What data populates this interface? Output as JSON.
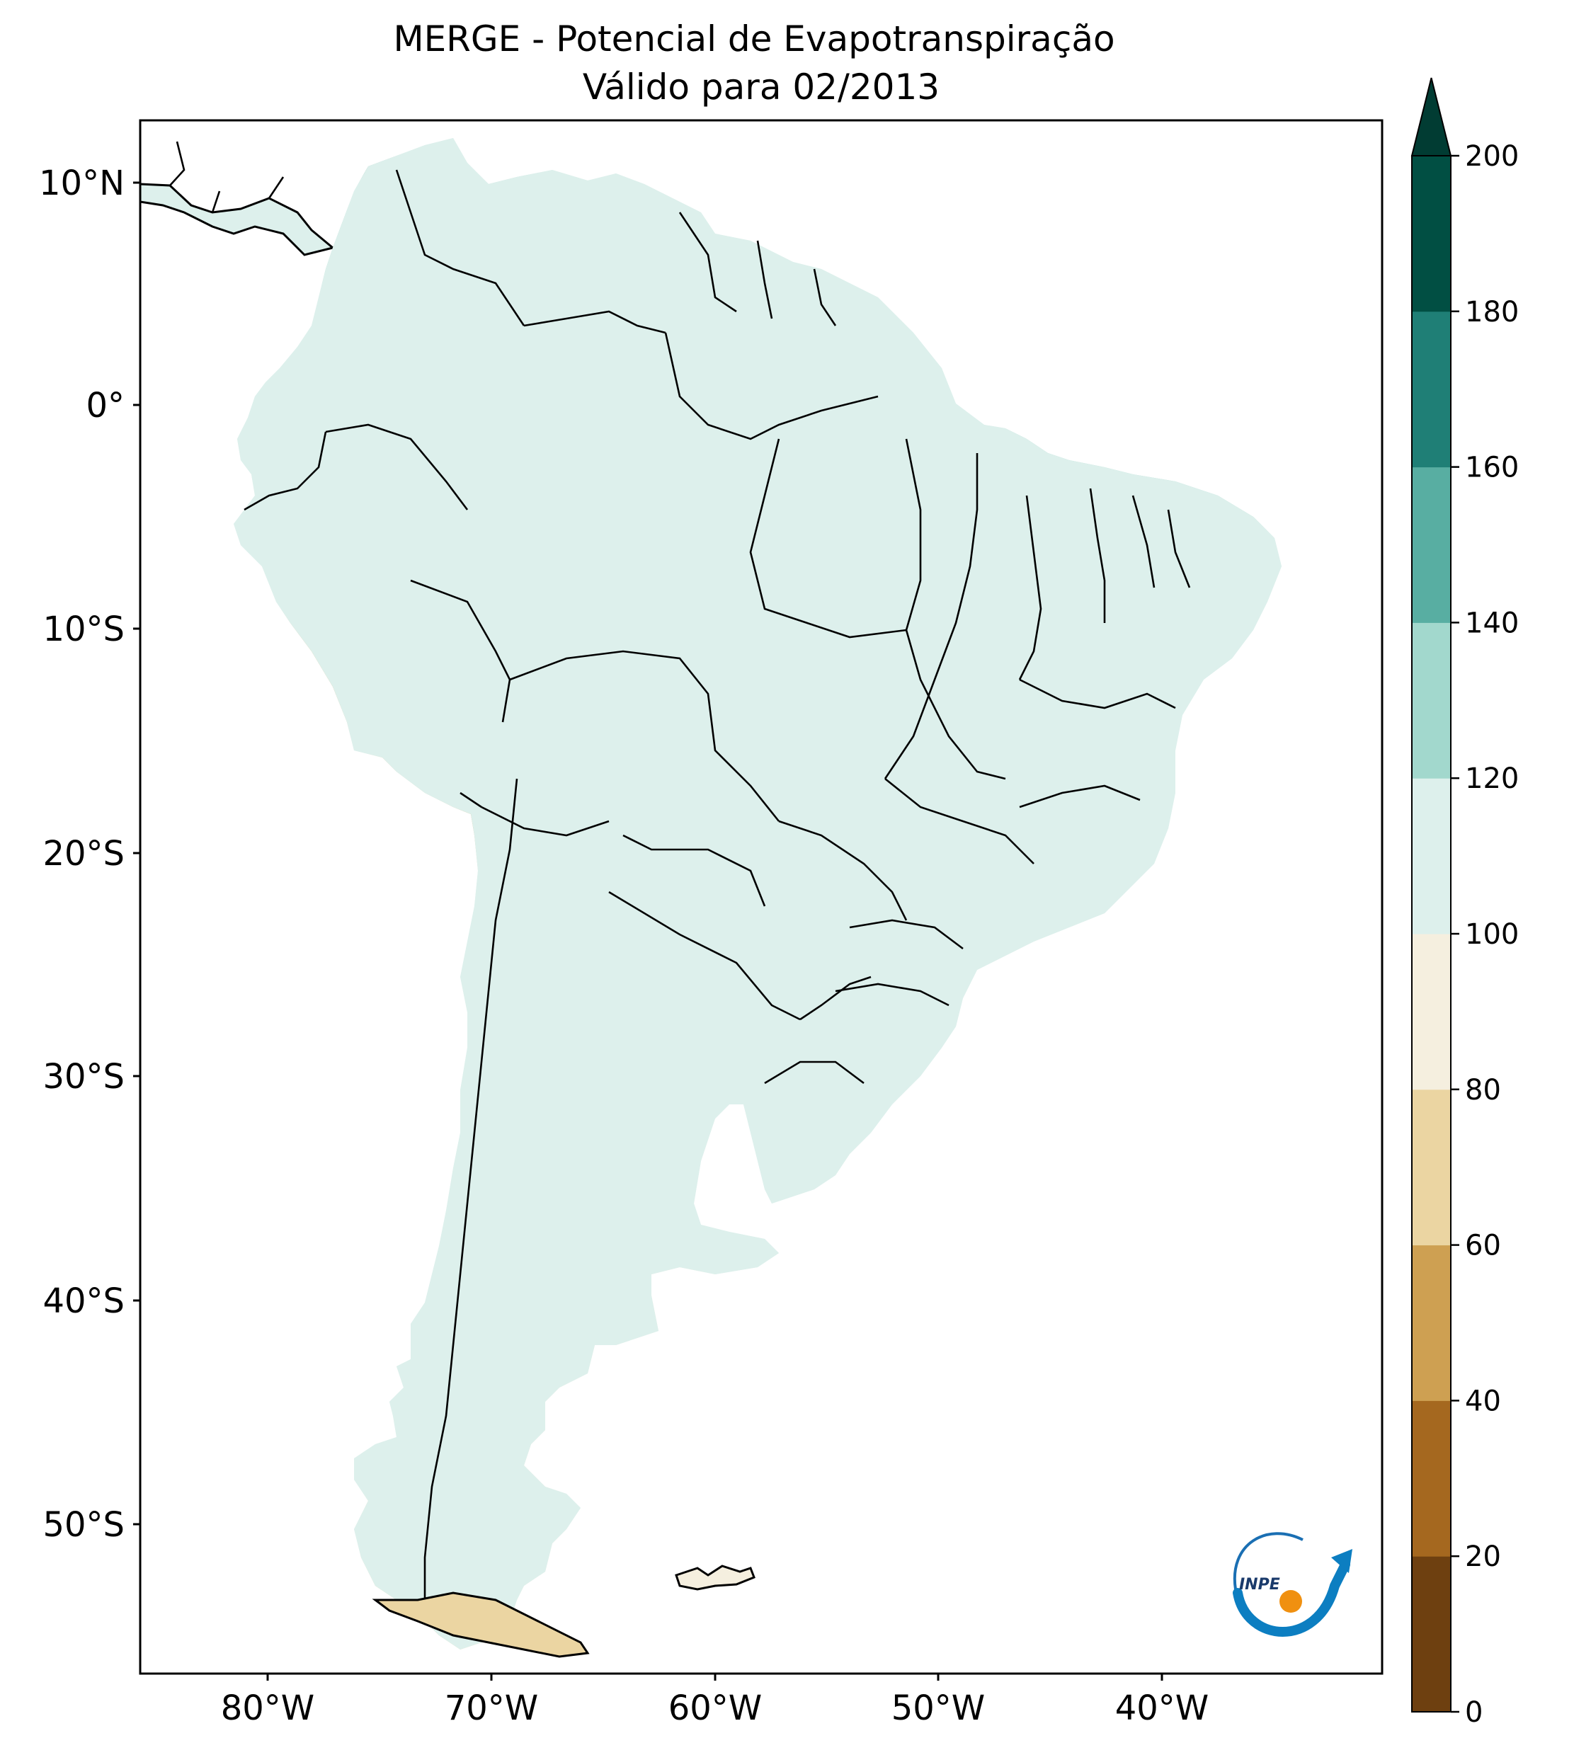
{
  "title": {
    "line1": "MERGE - Potencial de Evapotranspiração",
    "line2": "Válido para 02/2013"
  },
  "map": {
    "lat_ticks": [
      "10°N",
      "0°",
      "10°S",
      "20°S",
      "30°S",
      "40°S",
      "50°S"
    ],
    "lon_ticks": [
      "80°W",
      "70°W",
      "60°W",
      "50°W",
      "40°W"
    ],
    "lon_range": [
      -85,
      -30
    ],
    "lat_range": [
      -56,
      13
    ]
  },
  "colorbar": {
    "levels": [
      "0",
      "20",
      "40",
      "60",
      "80",
      "100",
      "120",
      "140",
      "160",
      "180",
      "200"
    ],
    "colors": [
      "#6e4010",
      "#a5681f",
      "#cea052",
      "#ebd5a2",
      "#f5efdf",
      "#ddf0ec",
      "#a2d8cd",
      "#58aea2",
      "#1f7f76",
      "#014f43"
    ],
    "extend_color": "#013c33"
  },
  "chart_data": {
    "type": "heatmap",
    "title": "MERGE - Potencial de Evapotranspiração — Válido para 02/2013",
    "variable": "Potencial de Evapotranspiração",
    "period": "02/2013",
    "xlabel": "",
    "ylabel": "",
    "xlim": [
      -85,
      -30
    ],
    "ylim": [
      -56,
      13
    ],
    "color_levels": [
      0,
      20,
      40,
      60,
      80,
      100,
      120,
      140,
      160,
      180,
      200
    ],
    "extend": "max"
  },
  "logo": {
    "text": "INPE"
  }
}
